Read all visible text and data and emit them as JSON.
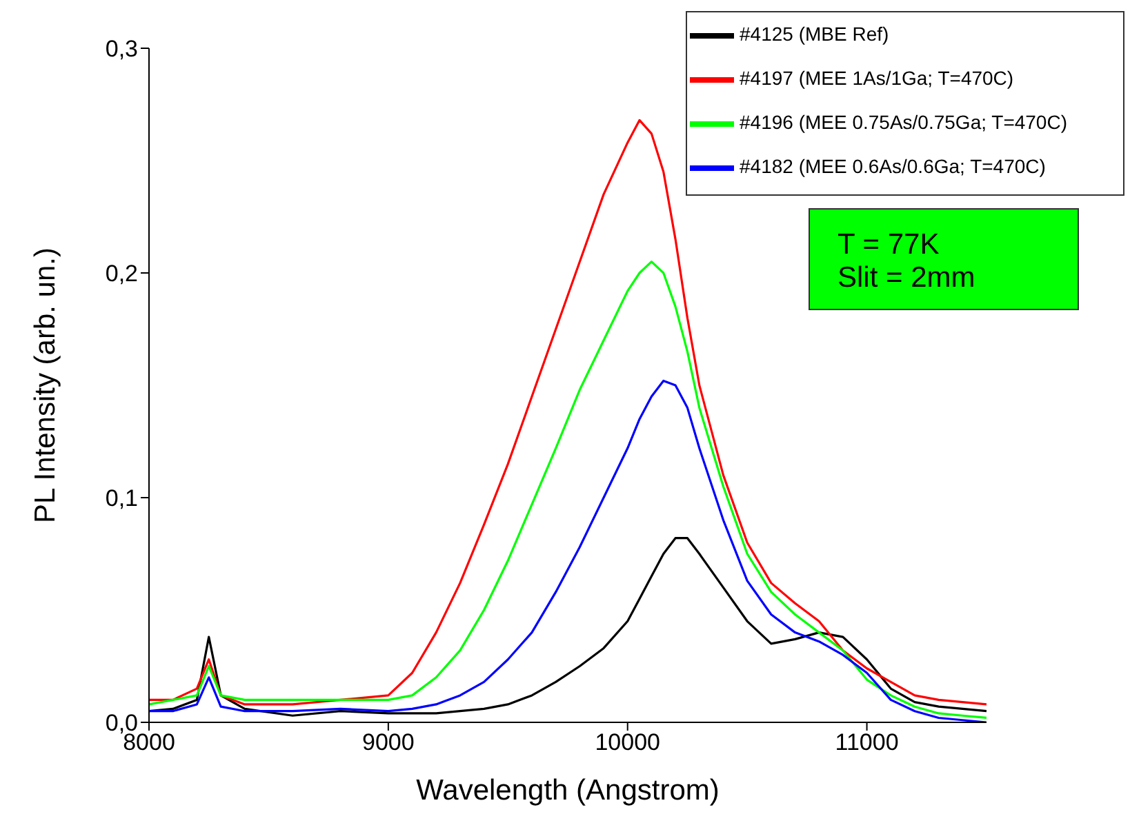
{
  "chart_data": {
    "type": "line",
    "xlabel": "Wavelength (Angstrom)",
    "ylabel": "PL Intensity (arb. un.)",
    "x": [
      8000,
      8100,
      8200,
      8250,
      8300,
      8400,
      8600,
      8800,
      9000,
      9100,
      9200,
      9300,
      9400,
      9500,
      9600,
      9700,
      9800,
      9900,
      10000,
      10050,
      10100,
      10150,
      10200,
      10250,
      10300,
      10400,
      10500,
      10600,
      10700,
      10800,
      10900,
      11000,
      11100,
      11200,
      11300,
      11400,
      11500
    ],
    "series": [
      {
        "name": "#4125 (MBE Ref)",
        "color": "#000000",
        "values": [
          0.005,
          0.006,
          0.01,
          0.038,
          0.012,
          0.006,
          0.003,
          0.005,
          0.004,
          0.004,
          0.004,
          0.005,
          0.006,
          0.008,
          0.012,
          0.018,
          0.025,
          0.033,
          0.045,
          0.055,
          0.065,
          0.075,
          0.082,
          0.082,
          0.075,
          0.06,
          0.045,
          0.035,
          0.037,
          0.04,
          0.038,
          0.028,
          0.015,
          0.009,
          0.007,
          0.006,
          0.005
        ]
      },
      {
        "name": "#4197 (MEE 1As/1Ga; T=470C)",
        "color": "#ff0000",
        "values": [
          0.01,
          0.01,
          0.015,
          0.028,
          0.012,
          0.008,
          0.008,
          0.01,
          0.012,
          0.022,
          0.04,
          0.062,
          0.088,
          0.115,
          0.145,
          0.175,
          0.205,
          0.235,
          0.258,
          0.268,
          0.262,
          0.245,
          0.215,
          0.18,
          0.15,
          0.11,
          0.08,
          0.062,
          0.053,
          0.045,
          0.032,
          0.024,
          0.018,
          0.012,
          0.01,
          0.009,
          0.008
        ]
      },
      {
        "name": "#4196 (MEE 0.75As/0.75Ga; T=470C)",
        "color": "#00ff00",
        "values": [
          0.008,
          0.01,
          0.012,
          0.025,
          0.012,
          0.01,
          0.01,
          0.01,
          0.01,
          0.012,
          0.02,
          0.032,
          0.05,
          0.072,
          0.097,
          0.122,
          0.148,
          0.17,
          0.192,
          0.2,
          0.205,
          0.2,
          0.185,
          0.165,
          0.14,
          0.105,
          0.075,
          0.058,
          0.048,
          0.04,
          0.032,
          0.019,
          0.012,
          0.007,
          0.004,
          0.003,
          0.002
        ]
      },
      {
        "name": "#4182 (MEE 0.6As/0.6Ga; T=470C)",
        "color": "#0000ff",
        "values": [
          0.005,
          0.005,
          0.008,
          0.02,
          0.007,
          0.005,
          0.005,
          0.006,
          0.005,
          0.006,
          0.008,
          0.012,
          0.018,
          0.028,
          0.04,
          0.058,
          0.078,
          0.1,
          0.122,
          0.135,
          0.145,
          0.152,
          0.15,
          0.14,
          0.122,
          0.09,
          0.063,
          0.048,
          0.04,
          0.036,
          0.03,
          0.022,
          0.01,
          0.005,
          0.002,
          0.001,
          0.0
        ]
      }
    ],
    "xlim": [
      8000,
      11500
    ],
    "xticks": [
      8000,
      9000,
      10000,
      11000
    ],
    "ylim": [
      0,
      0.3
    ],
    "yticks": [
      {
        "value": 0,
        "label": "0,0"
      },
      {
        "value": 0.1,
        "label": "0,1"
      },
      {
        "value": 0.2,
        "label": "0,2"
      },
      {
        "value": 0.3,
        "label": "0,3"
      }
    ],
    "annotations": [
      "T = 77K",
      "Slit = 2mm"
    ],
    "legend": "top right",
    "grid": false,
    "marker": "none",
    "line_style": "solid"
  }
}
